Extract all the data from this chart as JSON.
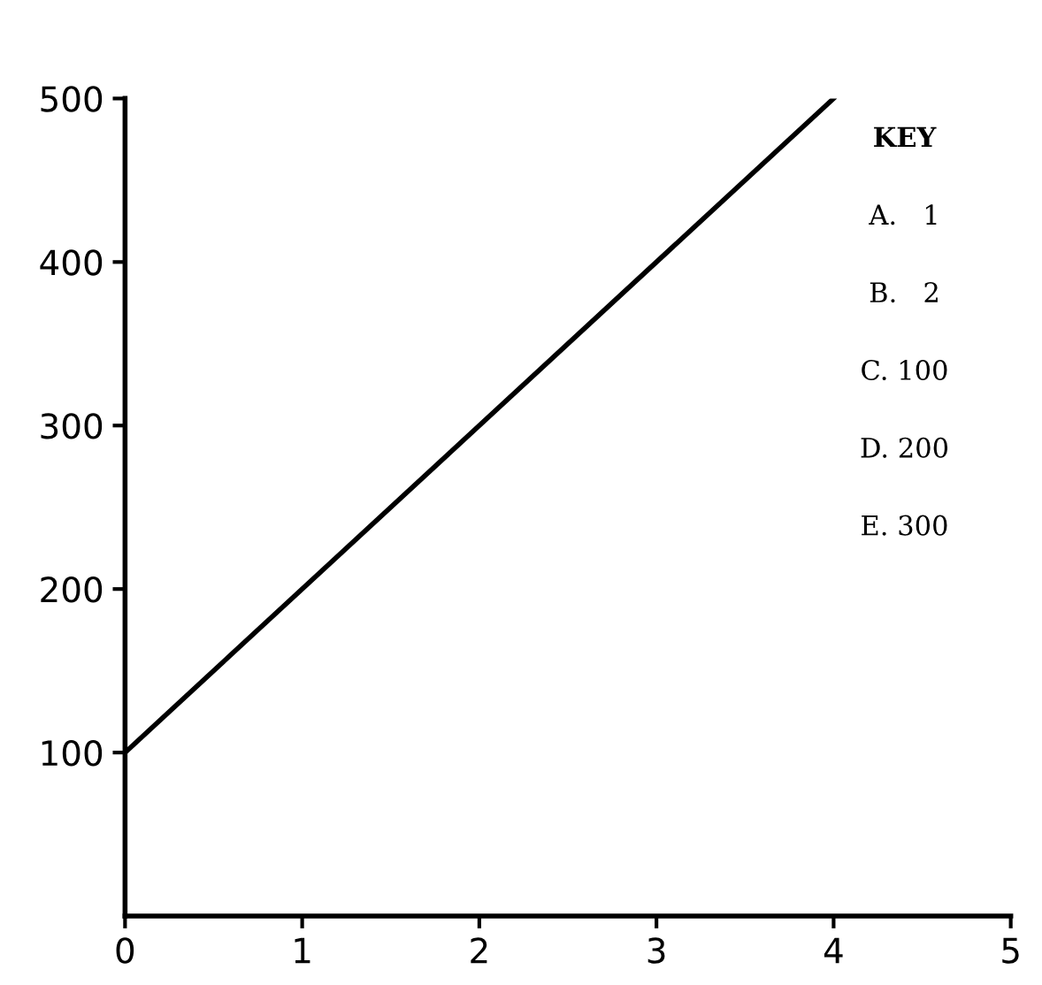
{
  "chart_data": {
    "type": "line",
    "x": [
      0,
      4
    ],
    "values": [
      100,
      500
    ],
    "color": "#000000",
    "xlim": [
      0,
      5
    ],
    "xticks": [
      0,
      1,
      2,
      3,
      4,
      5
    ],
    "ylim": [
      0,
      500
    ],
    "yticks": [
      100,
      200,
      300,
      400,
      500
    ],
    "grid": false,
    "marker": "none",
    "line_style": "solid",
    "annotations": [
      "KEY",
      "A.   1",
      "B.   2",
      "C. 100",
      "D. 200",
      "E. 300"
    ]
  }
}
